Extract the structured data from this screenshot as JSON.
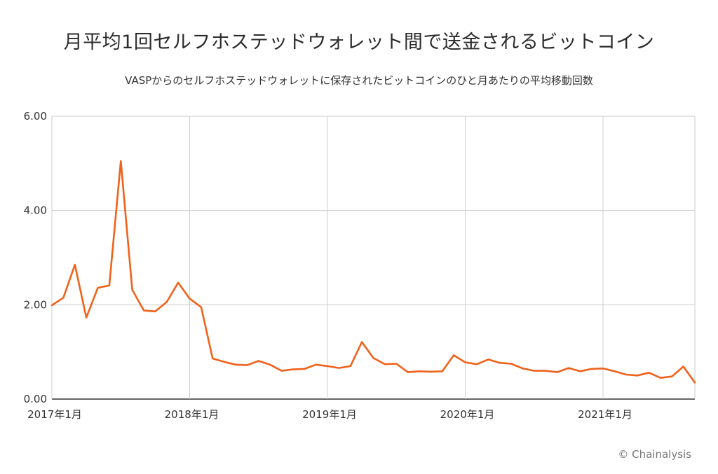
{
  "chart_data": {
    "type": "line",
    "title": "月平均1回セルフホステッドウォレット間で送金されるビットコイン",
    "subtitle": "VASPからのセルフホステッドウォレットに保存されたビットコインのひと月あたりの平均移動回数",
    "xlabel": "",
    "ylabel": "",
    "ylim": [
      0,
      6
    ],
    "yticks": [
      "0.00",
      "2.00",
      "4.00",
      "6.00"
    ],
    "xticks": [
      "2017年1月",
      "2018年1月",
      "2019年1月",
      "2020年1月",
      "2021年1月"
    ],
    "grid": true,
    "legend": "none",
    "x": [
      "2017-01",
      "2017-02",
      "2017-03",
      "2017-04",
      "2017-05",
      "2017-06",
      "2017-07",
      "2017-08",
      "2017-09",
      "2017-10",
      "2017-11",
      "2017-12",
      "2018-01",
      "2018-02",
      "2018-03",
      "2018-04",
      "2018-05",
      "2018-06",
      "2018-07",
      "2018-08",
      "2018-09",
      "2018-10",
      "2018-11",
      "2018-12",
      "2019-01",
      "2019-02",
      "2019-03",
      "2019-04",
      "2019-05",
      "2019-06",
      "2019-07",
      "2019-08",
      "2019-09",
      "2019-10",
      "2019-11",
      "2019-12",
      "2020-01",
      "2020-02",
      "2020-03",
      "2020-04",
      "2020-05",
      "2020-06",
      "2020-07",
      "2020-08",
      "2020-09",
      "2020-10",
      "2020-11",
      "2020-12",
      "2021-01",
      "2021-02",
      "2021-03",
      "2021-04",
      "2021-05",
      "2021-06",
      "2021-07",
      "2021-08",
      "2021-09"
    ],
    "series": [
      {
        "color": "#f0621b",
        "values": [
          1.99,
          2.15,
          2.85,
          1.73,
          2.36,
          2.41,
          5.05,
          2.32,
          1.88,
          1.86,
          2.06,
          2.47,
          2.13,
          1.95,
          0.86,
          0.79,
          0.73,
          0.72,
          0.81,
          0.73,
          0.6,
          0.63,
          0.64,
          0.73,
          0.7,
          0.66,
          0.7,
          1.21,
          0.87,
          0.74,
          0.75,
          0.57,
          0.59,
          0.58,
          0.59,
          0.93,
          0.78,
          0.74,
          0.84,
          0.77,
          0.75,
          0.65,
          0.6,
          0.6,
          0.57,
          0.66,
          0.59,
          0.64,
          0.65,
          0.59,
          0.52,
          0.5,
          0.56,
          0.45,
          0.48,
          0.69,
          0.35
        ]
      }
    ]
  },
  "credit": "© Chainalysis"
}
